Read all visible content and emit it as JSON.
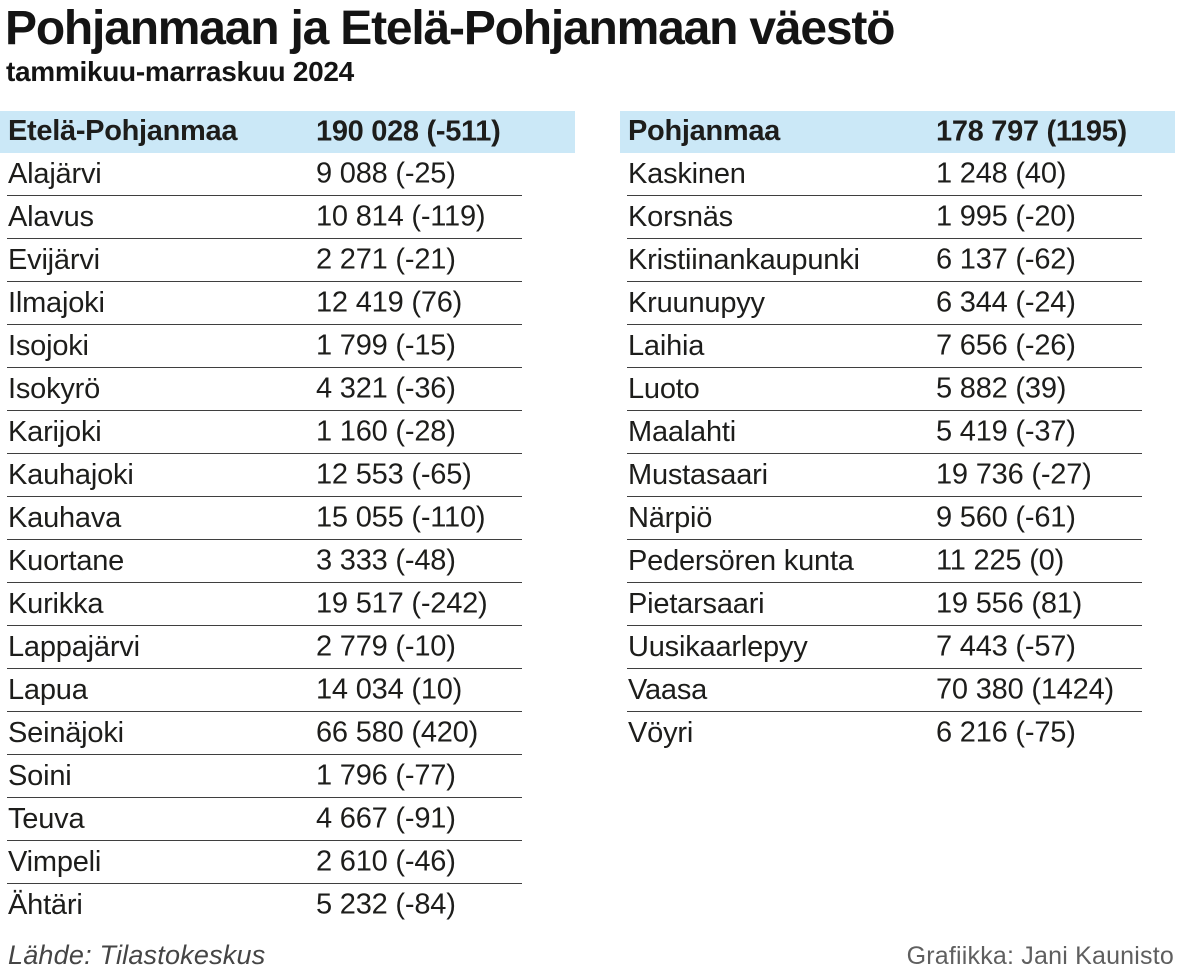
{
  "title": "Pohjanmaan ja Etelä-Pohjanmaan väestö",
  "subtitle": "tammikuu-marraskuu 2024",
  "footer": {
    "source": "Lähde: Tilastokeskus",
    "credit": "Grafiikka: Jani Kaunisto"
  },
  "colors": {
    "header_bg": "#cbe8f7",
    "text": "#1d1d1b",
    "row_line": "#3f3f3f",
    "credit": "#5f5f5f"
  },
  "chart_data": {
    "type": "table",
    "title": "Pohjanmaan ja Etelä-Pohjanmaan väestö",
    "subtitle": "tammikuu-marraskuu 2024",
    "value_format": "population (change)",
    "source": "Tilastokeskus",
    "credit": "Jani Kaunisto",
    "groups": [
      {
        "region": "Etelä-Pohjanmaa",
        "total_population": 190028,
        "total_change": -511,
        "municipalities": [
          {
            "name": "Alajärvi",
            "population": 9088,
            "change": -25
          },
          {
            "name": "Alavus",
            "population": 10814,
            "change": -119
          },
          {
            "name": "Evijärvi",
            "population": 2271,
            "change": -21
          },
          {
            "name": "Ilmajoki",
            "population": 12419,
            "change": 76
          },
          {
            "name": "Isojoki",
            "population": 1799,
            "change": -15
          },
          {
            "name": "Isokyrö",
            "population": 4321,
            "change": -36
          },
          {
            "name": "Karijoki",
            "population": 1160,
            "change": -28
          },
          {
            "name": "Kauhajoki",
            "population": 12553,
            "change": -65
          },
          {
            "name": "Kauhava",
            "population": 15055,
            "change": -110
          },
          {
            "name": "Kuortane",
            "population": 3333,
            "change": -48
          },
          {
            "name": "Kurikka",
            "population": 19517,
            "change": -242
          },
          {
            "name": "Lappajärvi",
            "population": 2779,
            "change": -10
          },
          {
            "name": "Lapua",
            "population": 14034,
            "change": 10
          },
          {
            "name": "Seinäjoki",
            "population": 66580,
            "change": 420
          },
          {
            "name": "Soini",
            "population": 1796,
            "change": -77
          },
          {
            "name": "Teuva",
            "population": 4667,
            "change": -91
          },
          {
            "name": "Vimpeli",
            "population": 2610,
            "change": -46
          },
          {
            "name": "Ähtäri",
            "population": 5232,
            "change": -84
          }
        ]
      },
      {
        "region": "Pohjanmaa",
        "total_population": 178797,
        "total_change": 1195,
        "municipalities": [
          {
            "name": "Kaskinen",
            "population": 1248,
            "change": 40
          },
          {
            "name": "Korsnäs",
            "population": 1995,
            "change": -20
          },
          {
            "name": "Kristiinankaupunki",
            "population": 6137,
            "change": -62
          },
          {
            "name": "Kruunupyy",
            "population": 6344,
            "change": -24
          },
          {
            "name": "Laihia",
            "population": 7656,
            "change": -26
          },
          {
            "name": "Luoto",
            "population": 5882,
            "change": 39
          },
          {
            "name": "Maalahti",
            "population": 5419,
            "change": -37
          },
          {
            "name": "Mustasaari",
            "population": 19736,
            "change": -27
          },
          {
            "name": "Närpiö",
            "population": 9560,
            "change": -61
          },
          {
            "name": "Pedersören kunta",
            "population": 11225,
            "change": 0
          },
          {
            "name": "Pietarsaari",
            "population": 19556,
            "change": 81
          },
          {
            "name": "Uusikaarlepyy",
            "population": 7443,
            "change": -57
          },
          {
            "name": "Vaasa",
            "population": 70380,
            "change": 1424
          },
          {
            "name": "Vöyri",
            "population": 6216,
            "change": -75
          }
        ]
      }
    ]
  }
}
